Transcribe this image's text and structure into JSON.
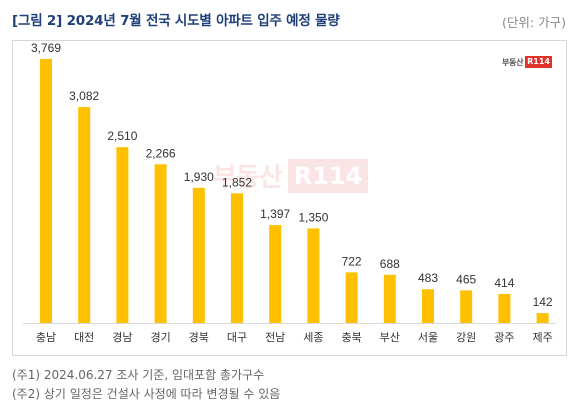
{
  "header": {
    "title": "[그림 2] 2024년 7월 전국 시도별 아파트 입주 예정 물량",
    "unit": "(단위: 가구)"
  },
  "logo": {
    "text": "부동산",
    "badge": "R114"
  },
  "notes": [
    "(주1) 2024.06.27 조사 기준, 임대포함 총가구수",
    "(주2) 상기 일정은 건설사 사정에 따라 변경될 수 있음"
  ],
  "chart_data": {
    "type": "bar",
    "categories": [
      "충남",
      "대전",
      "경남",
      "경기",
      "경북",
      "대구",
      "전남",
      "세종",
      "충북",
      "부산",
      "서울",
      "강원",
      "광주",
      "제주"
    ],
    "values": [
      3769,
      3082,
      2510,
      2266,
      1930,
      1852,
      1397,
      1350,
      722,
      688,
      483,
      465,
      414,
      142
    ],
    "data_labels": [
      "3,769",
      "3,082",
      "2,510",
      "2,266",
      "1,930",
      "1,852",
      "1,397",
      "1,350",
      "722",
      "688",
      "483",
      "465",
      "414",
      "142"
    ],
    "ylim": [
      0,
      3769
    ],
    "bar_color": "#ffc000",
    "grid": false,
    "legend": "none"
  }
}
